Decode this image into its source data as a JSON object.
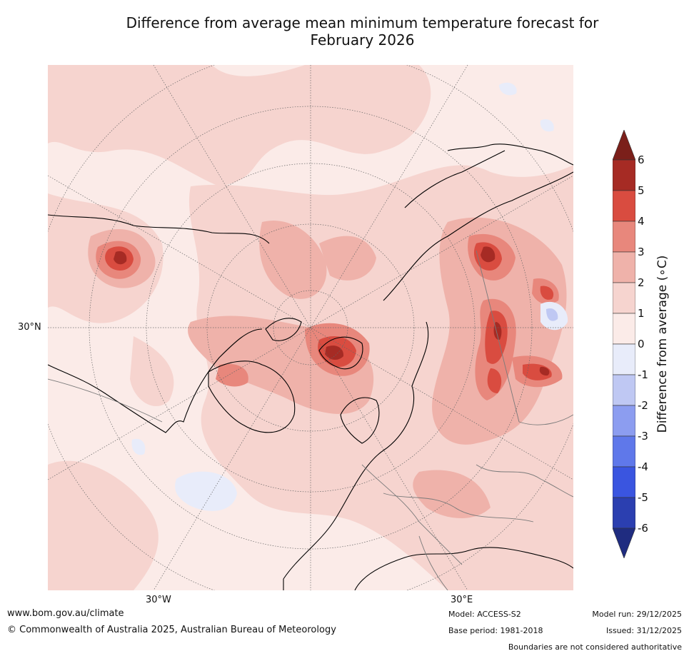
{
  "title": {
    "line1": "Difference from average mean minimum temperature forecast for",
    "line2": "February 2026"
  },
  "map": {
    "lat_label": "30°N",
    "lon_labels": [
      "30°W",
      "30°E"
    ]
  },
  "legend": {
    "label": "Difference from average (∘C)",
    "ticks": [
      "6",
      "5",
      "4",
      "3",
      "2",
      "1",
      "0",
      "-1",
      "-2",
      "-3",
      "-4",
      "-5",
      "-6"
    ],
    "bins": [
      {
        "range": ">6",
        "color": "#7b1f1a"
      },
      {
        "range": "5 to 6",
        "color": "#a62b24"
      },
      {
        "range": "4 to 5",
        "color": "#d94c40"
      },
      {
        "range": "3 to 4",
        "color": "#e8877c"
      },
      {
        "range": "2 to 3",
        "color": "#efb2aa"
      },
      {
        "range": "1 to 2",
        "color": "#f6d4cf"
      },
      {
        "range": "0 to 1",
        "color": "#fbebe8"
      },
      {
        "range": "-1 to 0",
        "color": "#e8ecfa"
      },
      {
        "range": "-2 to -1",
        "color": "#bfc8f3"
      },
      {
        "range": "-3 to -2",
        "color": "#8c9df0"
      },
      {
        "range": "-4 to -3",
        "color": "#5f78ea"
      },
      {
        "range": "-5 to -4",
        "color": "#3a55e0"
      },
      {
        "range": "-6 to -5",
        "color": "#2b3fb0"
      },
      {
        "range": "<-6",
        "color": "#1f2c80"
      }
    ]
  },
  "footer": {
    "website": "www.bom.gov.au/climate",
    "copyright": "© Commonwealth of Australia 2025, Australian Bureau of Meteorology",
    "model": "Model: ACCESS-S2",
    "base_period": "Base period: 1981-2018",
    "model_run": "Model run: 29/12/2025",
    "issued": "Issued: 31/12/2025",
    "disclaimer": "Boundaries are not considered authoritative"
  }
}
